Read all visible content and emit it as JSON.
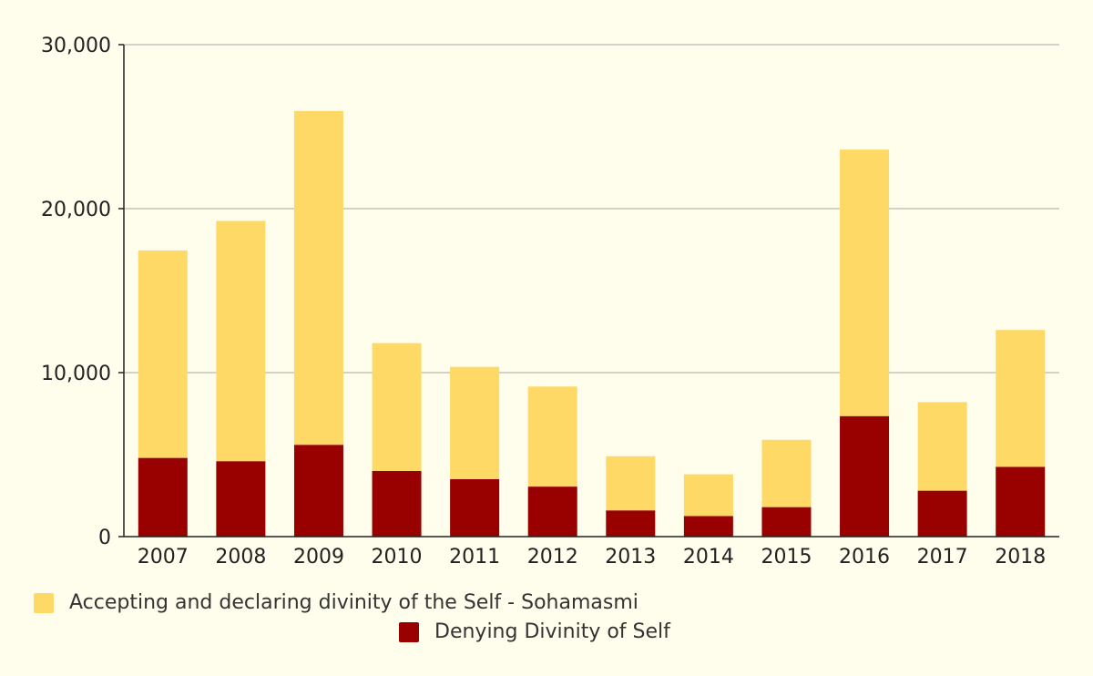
{
  "chart_data": {
    "type": "bar",
    "stacked": true,
    "title": "",
    "xlabel": "",
    "ylabel": "",
    "ylim": [
      0,
      30000
    ],
    "yticks": [
      0,
      10000,
      20000,
      30000
    ],
    "ytick_labels": [
      "0",
      "10,000",
      "20,000",
      "30,000"
    ],
    "grid": true,
    "legend_position": "bottom",
    "categories": [
      "2007",
      "2008",
      "2009",
      "2010",
      "2011",
      "2012",
      "2013",
      "2014",
      "2015",
      "2016",
      "2017",
      "2018"
    ],
    "series": [
      {
        "name": "Denying Divinity of Self",
        "color": "#990000",
        "values": [
          4800,
          4600,
          5600,
          4000,
          3500,
          3050,
          1600,
          1250,
          1800,
          7350,
          2800,
          4250
        ]
      },
      {
        "name": "Accepting and declaring divinity of the Self - Sohamasmi",
        "color": "#ffd966",
        "values": [
          12650,
          14650,
          20350,
          7800,
          6850,
          6100,
          3300,
          2550,
          4100,
          16250,
          5400,
          8350
        ]
      }
    ]
  },
  "legend": {
    "items": [
      {
        "label": "Accepting and declaring divinity of the Self - Sohamasmi",
        "color": "#ffd966"
      },
      {
        "label": "Denying Divinity of Self",
        "color": "#990000"
      }
    ]
  }
}
